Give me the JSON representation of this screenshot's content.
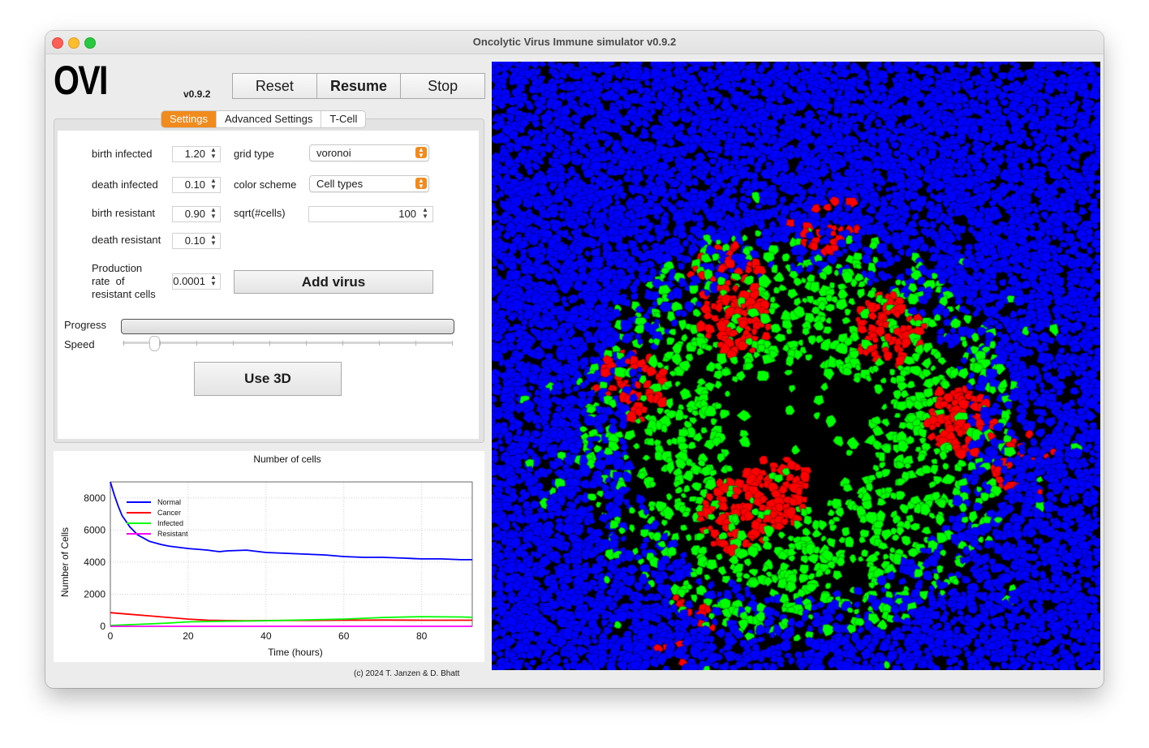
{
  "window": {
    "title": "Oncolytic Virus Immune simulator v0.9.2"
  },
  "header": {
    "logo": "OVI",
    "version": "v0.9.2",
    "buttons": {
      "reset": "Reset",
      "resume": "Resume",
      "stop": "Stop"
    }
  },
  "tabs": [
    "Settings",
    "Advanced Settings",
    "T-Cell"
  ],
  "settings": {
    "birth_infected": {
      "label": "birth infected",
      "value": "1.20"
    },
    "death_infected": {
      "label": "death infected",
      "value": "0.10"
    },
    "birth_resistant": {
      "label": "birth resistant",
      "value": "0.90"
    },
    "death_resistant": {
      "label": "death resistant",
      "value": "0.10"
    },
    "production_rate": {
      "label_lines": [
        "Production",
        "rate  of",
        "resistant cells"
      ],
      "value": "0.0001"
    },
    "grid_type": {
      "label": "grid type",
      "value": "voronoi"
    },
    "color_scheme": {
      "label": "color scheme",
      "value": "Cell types"
    },
    "sqrt_cells": {
      "label": "sqrt(#cells)",
      "value": "100"
    },
    "add_virus": "Add virus",
    "progress_label": "Progress",
    "progress_value": 0,
    "speed_label": "Speed",
    "speed_value": 0.1,
    "use_3d": "Use 3D"
  },
  "chart_data": {
    "type": "line",
    "title": "Number of cells",
    "xlabel": "Time (hours)",
    "ylabel": "Number of Cells",
    "xlim": [
      0,
      93
    ],
    "ylim": [
      0,
      9000
    ],
    "xticks": [
      0,
      20,
      40,
      60,
      80
    ],
    "yticks": [
      0,
      2000,
      4000,
      6000,
      8000
    ],
    "grid": true,
    "legend_position": "top-left",
    "series": [
      {
        "name": "Normal",
        "color": "#0000ff",
        "x": [
          0,
          1,
          2,
          3,
          5,
          7,
          10,
          13,
          15,
          20,
          25,
          28,
          30,
          35,
          40,
          45,
          50,
          55,
          60,
          65,
          70,
          75,
          80,
          85,
          90,
          93
        ],
        "y": [
          9000,
          8200,
          7500,
          6900,
          6200,
          5700,
          5300,
          5100,
          5000,
          4850,
          4750,
          4650,
          4700,
          4750,
          4600,
          4550,
          4500,
          4450,
          4350,
          4300,
          4300,
          4250,
          4200,
          4200,
          4150,
          4150
        ]
      },
      {
        "name": "Cancer",
        "color": "#ff0000",
        "x": [
          0,
          5,
          10,
          15,
          20,
          25,
          30,
          35,
          40,
          50,
          60,
          70,
          80,
          90,
          93
        ],
        "y": [
          850,
          750,
          650,
          550,
          450,
          380,
          360,
          350,
          360,
          370,
          380,
          390,
          380,
          380,
          380
        ]
      },
      {
        "name": "Infected",
        "color": "#00ff00",
        "x": [
          0,
          5,
          10,
          15,
          20,
          25,
          30,
          35,
          40,
          50,
          60,
          70,
          80,
          90,
          93
        ],
        "y": [
          50,
          100,
          150,
          200,
          280,
          300,
          320,
          330,
          350,
          400,
          450,
          550,
          600,
          580,
          560
        ]
      },
      {
        "name": "Resistant",
        "color": "#ff00ff",
        "x": [
          0,
          20,
          40,
          60,
          80,
          93
        ],
        "y": [
          0,
          0,
          0,
          0,
          0,
          0
        ]
      }
    ]
  },
  "footer": {
    "copyright": "(c) 2024 T. Janzen & D. Bhatt"
  },
  "colors": {
    "accent": "#f28b1e",
    "normal": "#0000ff",
    "cancer": "#ff0000",
    "infected": "#00ff00",
    "resistant": "#ff00ff",
    "background": "#000000"
  }
}
